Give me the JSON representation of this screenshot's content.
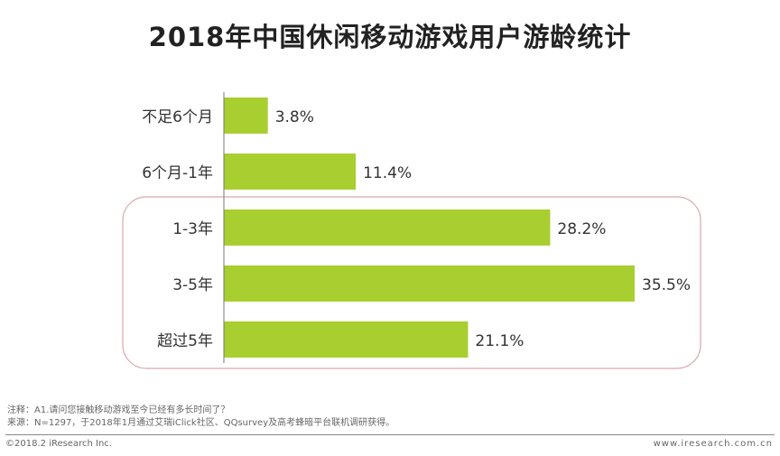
{
  "title": "2018年中国休闲移动游戏用户游龄统计",
  "notes": {
    "note": "注释：A1.请问您接触移动游戏至今已经有多长时间了？",
    "source": "来源：N=1297，于2018年1月通过艾瑞iClick社区、QQsurvey及高考蜂暗平台联机调研获得。"
  },
  "footer": {
    "copyright": "©2018.2 iResearch Inc.",
    "website": "www.iresearch.com.cn"
  },
  "colors": {
    "bar": "#a8cf2f",
    "highlight_border": "#d9a7ad"
  },
  "chart_data": {
    "type": "bar",
    "orientation": "horizontal",
    "categories": [
      "不足6个月",
      "6个月-1年",
      "1-3年",
      "3-5年",
      "超过5年"
    ],
    "values": [
      3.8,
      11.4,
      28.2,
      35.5,
      21.1
    ],
    "value_labels": [
      "3.8%",
      "11.4%",
      "28.2%",
      "35.5%",
      "21.1%"
    ],
    "unit": "%",
    "xlim": [
      0,
      35.5
    ],
    "highlighted_categories": [
      "1-3年",
      "3-5年",
      "超过5年"
    ]
  }
}
